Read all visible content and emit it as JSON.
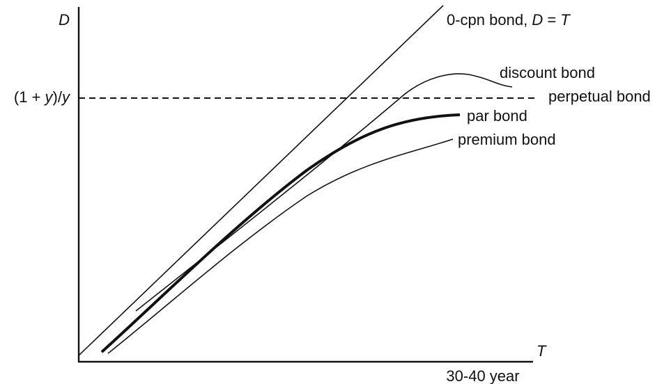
{
  "chart_data": {
    "type": "line",
    "title": "",
    "xlabel": "T",
    "ylabel": "D",
    "x_tick_labels": [
      "30-40 year"
    ],
    "y_tick_labels": [
      {
        "parts": [
          {
            "text": "(1 + ",
            "italic": false
          },
          {
            "text": "y",
            "italic": true
          },
          {
            "text": ")/",
            "italic": false
          },
          {
            "text": "y",
            "italic": true
          }
        ]
      }
    ],
    "grid": false,
    "legend": "none (curves labeled directly)",
    "series": [
      {
        "name": "0-cpn bond",
        "label": {
          "parts": [
            {
              "text": "0-cpn bond, ",
              "italic": false
            },
            {
              "text": "D",
              "italic": true
            },
            {
              "text": " = ",
              "italic": false
            },
            {
              "text": "T",
              "italic": true
            }
          ]
        },
        "style": "thin",
        "color": "#111111"
      },
      {
        "name": "discount bond",
        "label": {
          "parts": [
            {
              "text": "discount bond",
              "italic": false
            }
          ]
        },
        "style": "thin",
        "color": "#111111"
      },
      {
        "name": "perpetual bond",
        "label": {
          "parts": [
            {
              "text": "perpetual bond",
              "italic": false
            }
          ]
        },
        "style": "dashed",
        "color": "#111111"
      },
      {
        "name": "par bond",
        "label": {
          "parts": [
            {
              "text": "par bond",
              "italic": false
            }
          ]
        },
        "style": "thick",
        "color": "#111111"
      },
      {
        "name": "premium bond",
        "label": {
          "parts": [
            {
              "text": "premium bond",
              "italic": false
            }
          ]
        },
        "style": "thin",
        "color": "#111111"
      }
    ]
  }
}
